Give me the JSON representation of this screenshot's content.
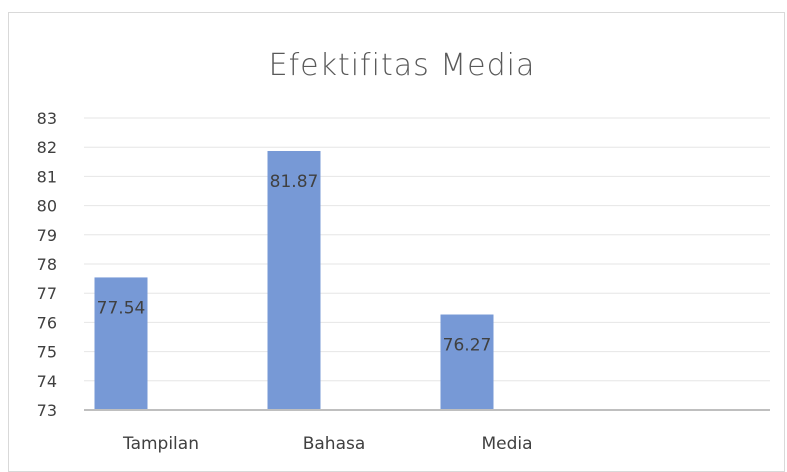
{
  "chart_data": {
    "type": "bar",
    "title": "Efektifitas Media",
    "categories": [
      "Tampilan",
      "Bahasa",
      "Media"
    ],
    "values": [
      77.54,
      81.87,
      76.27
    ],
    "data_labels": [
      "77.54",
      "81.87",
      "76.27"
    ],
    "xlabel": "",
    "ylabel": "",
    "ylim": [
      73,
      83
    ],
    "y_ticks": [
      73,
      74,
      75,
      76,
      77,
      78,
      79,
      80,
      81,
      82,
      83
    ],
    "grid": true,
    "legend": "none",
    "colors": {
      "bar": "#7799d6",
      "grid": "#e6e6e6",
      "axis": "#bfbfbf"
    }
  }
}
